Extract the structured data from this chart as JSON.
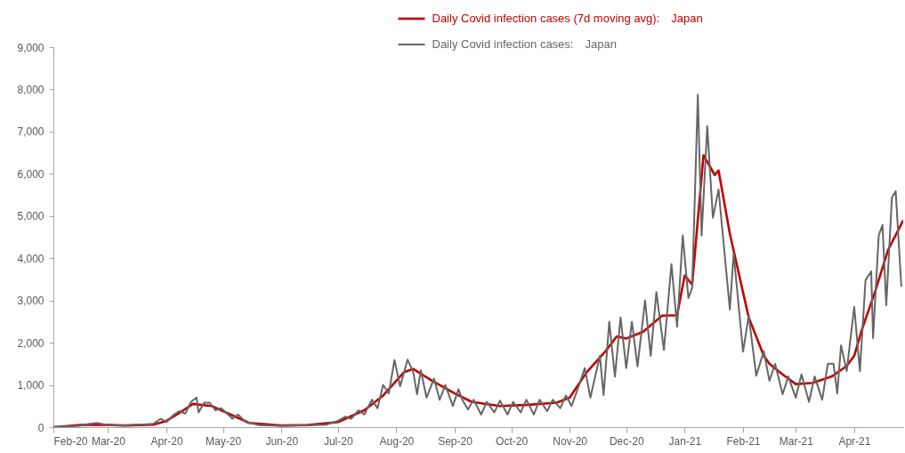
{
  "chart_data": {
    "type": "line",
    "xlim": [
      "2020-02-01",
      "2021-04-27"
    ],
    "xticks": [
      {
        "value": "2020-02-01",
        "label": "Feb-20"
      },
      {
        "value": "2020-03-01",
        "label": "Mar-20"
      },
      {
        "value": "2020-04-01",
        "label": "Apr-20"
      },
      {
        "value": "2020-05-01",
        "label": "May-20"
      },
      {
        "value": "2020-06-01",
        "label": "Jun-20"
      },
      {
        "value": "2020-07-01",
        "label": "Jul-20"
      },
      {
        "value": "2020-08-01",
        "label": "Aug-20"
      },
      {
        "value": "2020-09-01",
        "label": "Sep-20"
      },
      {
        "value": "2020-10-01",
        "label": "Oct-20"
      },
      {
        "value": "2020-11-01",
        "label": "Nov-20"
      },
      {
        "value": "2020-12-01",
        "label": "Dec-20"
      },
      {
        "value": "2021-01-01",
        "label": "Jan-21"
      },
      {
        "value": "2021-02-01",
        "label": "Feb-21"
      },
      {
        "value": "2021-03-01",
        "label": "Mar-21"
      },
      {
        "value": "2021-04-01",
        "label": "Apr-21"
      }
    ],
    "ylim": [
      0,
      9000
    ],
    "yticks": [
      0,
      {
        "value": 1000,
        "label": "1,000"
      },
      {
        "value": 2000,
        "label": "2,000"
      },
      {
        "value": 3000,
        "label": "3,000"
      },
      {
        "value": 4000,
        "label": "4,000"
      },
      {
        "value": 5000,
        "label": "5,000"
      },
      {
        "value": 6000,
        "label": "6,000"
      },
      {
        "value": 7000,
        "label": "7,000"
      },
      {
        "value": 8000,
        "label": "8,000"
      },
      {
        "value": 9000,
        "label": "9,000"
      }
    ],
    "legend": "top",
    "grid": false,
    "series": [
      {
        "name": "Daily Covid infection cases (7d moving avg):　Japan",
        "color": "#c00000",
        "x": [
          "2020-02-01",
          "2020-02-15",
          "2020-02-25",
          "2020-03-10",
          "2020-03-25",
          "2020-04-01",
          "2020-04-10",
          "2020-04-15",
          "2020-04-25",
          "2020-05-05",
          "2020-05-15",
          "2020-06-01",
          "2020-06-15",
          "2020-07-01",
          "2020-07-15",
          "2020-07-25",
          "2020-08-05",
          "2020-08-10",
          "2020-08-20",
          "2020-09-01",
          "2020-09-10",
          "2020-09-25",
          "2020-10-10",
          "2020-10-25",
          "2020-11-01",
          "2020-11-10",
          "2020-11-20",
          "2020-11-26",
          "2020-12-01",
          "2020-12-10",
          "2020-12-20",
          "2020-12-28",
          "2021-01-01",
          "2021-01-05",
          "2021-01-11",
          "2021-01-17",
          "2021-01-19",
          "2021-01-25",
          "2021-02-04",
          "2021-02-12",
          "2021-02-15",
          "2021-02-22",
          "2021-03-01",
          "2021-03-10",
          "2021-03-20",
          "2021-03-28",
          "2021-04-01",
          "2021-04-05",
          "2021-04-12",
          "2021-04-19",
          "2021-04-27"
        ],
        "values": [
          0,
          50,
          60,
          40,
          60,
          150,
          400,
          550,
          500,
          300,
          100,
          40,
          50,
          120,
          400,
          750,
          1300,
          1380,
          1100,
          800,
          600,
          500,
          530,
          580,
          700,
          1300,
          1800,
          2150,
          2100,
          2260,
          2640,
          2650,
          3590,
          3380,
          6440,
          5970,
          6080,
          4580,
          2600,
          1690,
          1500,
          1250,
          1020,
          1050,
          1200,
          1450,
          1690,
          2300,
          3200,
          4200,
          4900
        ]
      },
      {
        "name": "Daily Covid infection cases:　Japan",
        "color": "#666666",
        "x": [
          "2020-02-01",
          "2020-02-08",
          "2020-02-15",
          "2020-02-20",
          "2020-02-24",
          "2020-03-01",
          "2020-03-10",
          "2020-03-18",
          "2020-03-25",
          "2020-03-29",
          "2020-04-01",
          "2020-04-05",
          "2020-04-08",
          "2020-04-11",
          "2020-04-14",
          "2020-04-17",
          "2020-04-18",
          "2020-04-21",
          "2020-04-24",
          "2020-04-27",
          "2020-04-30",
          "2020-05-03",
          "2020-05-06",
          "2020-05-09",
          "2020-05-13",
          "2020-05-20",
          "2020-06-01",
          "2020-06-15",
          "2020-06-25",
          "2020-07-01",
          "2020-07-05",
          "2020-07-08",
          "2020-07-12",
          "2020-07-15",
          "2020-07-19",
          "2020-07-22",
          "2020-07-25",
          "2020-07-28",
          "2020-07-31",
          "2020-08-03",
          "2020-08-07",
          "2020-08-10",
          "2020-08-12",
          "2020-08-14",
          "2020-08-17",
          "2020-08-21",
          "2020-08-24",
          "2020-08-27",
          "2020-08-31",
          "2020-09-03",
          "2020-09-05",
          "2020-09-08",
          "2020-09-11",
          "2020-09-15",
          "2020-09-18",
          "2020-09-22",
          "2020-09-25",
          "2020-09-29",
          "2020-10-02",
          "2020-10-06",
          "2020-10-09",
          "2020-10-13",
          "2020-10-16",
          "2020-10-20",
          "2020-10-23",
          "2020-10-27",
          "2020-10-30",
          "2020-11-02",
          "2020-11-06",
          "2020-11-09",
          "2020-11-12",
          "2020-11-17",
          "2020-11-19",
          "2020-11-22",
          "2020-11-25",
          "2020-11-28",
          "2020-12-01",
          "2020-12-04",
          "2020-12-07",
          "2020-12-11",
          "2020-12-14",
          "2020-12-17",
          "2020-12-21",
          "2020-12-25",
          "2020-12-28",
          "2020-12-31",
          "2021-01-03",
          "2021-01-05",
          "2021-01-08",
          "2021-01-10",
          "2021-01-13",
          "2021-01-16",
          "2021-01-19",
          "2021-01-25",
          "2021-01-27",
          "2021-02-01",
          "2021-02-04",
          "2021-02-08",
          "2021-02-12",
          "2021-02-15",
          "2021-02-18",
          "2021-02-22",
          "2021-02-25",
          "2021-03-01",
          "2021-03-04",
          "2021-03-08",
          "2021-03-11",
          "2021-03-15",
          "2021-03-18",
          "2021-03-21",
          "2021-03-23",
          "2021-03-25",
          "2021-03-28",
          "2021-04-01",
          "2021-04-04",
          "2021-04-07",
          "2021-04-10",
          "2021-04-11",
          "2021-04-14",
          "2021-04-16",
          "2021-04-18",
          "2021-04-21",
          "2021-04-23",
          "2021-04-26"
        ],
        "values": [
          0,
          20,
          30,
          80,
          100,
          50,
          40,
          60,
          80,
          200,
          120,
          300,
          380,
          320,
          600,
          700,
          350,
          580,
          580,
          400,
          450,
          330,
          200,
          300,
          120,
          50,
          30,
          50,
          60,
          150,
          250,
          200,
          400,
          300,
          650,
          450,
          1000,
          800,
          1590,
          970,
          1600,
          1300,
          780,
          1350,
          700,
          1150,
          650,
          1000,
          500,
          900,
          650,
          420,
          650,
          300,
          600,
          350,
          630,
          300,
          600,
          350,
          650,
          300,
          650,
          380,
          650,
          450,
          750,
          500,
          1000,
          1400,
          700,
          1690,
          760,
          2500,
          1200,
          2600,
          1400,
          2500,
          1440,
          3000,
          1690,
          3200,
          1830,
          3860,
          2380,
          4540,
          3060,
          3300,
          7870,
          4540,
          7130,
          4960,
          5630,
          2790,
          4110,
          1790,
          2640,
          1220,
          1800,
          1100,
          1500,
          780,
          1200,
          700,
          1250,
          600,
          1200,
          650,
          1500,
          1500,
          800,
          1940,
          1330,
          2850,
          1330,
          3480,
          3690,
          2110,
          4540,
          4790,
          2890,
          5440,
          5590,
          3330
        ]
      }
    ]
  }
}
